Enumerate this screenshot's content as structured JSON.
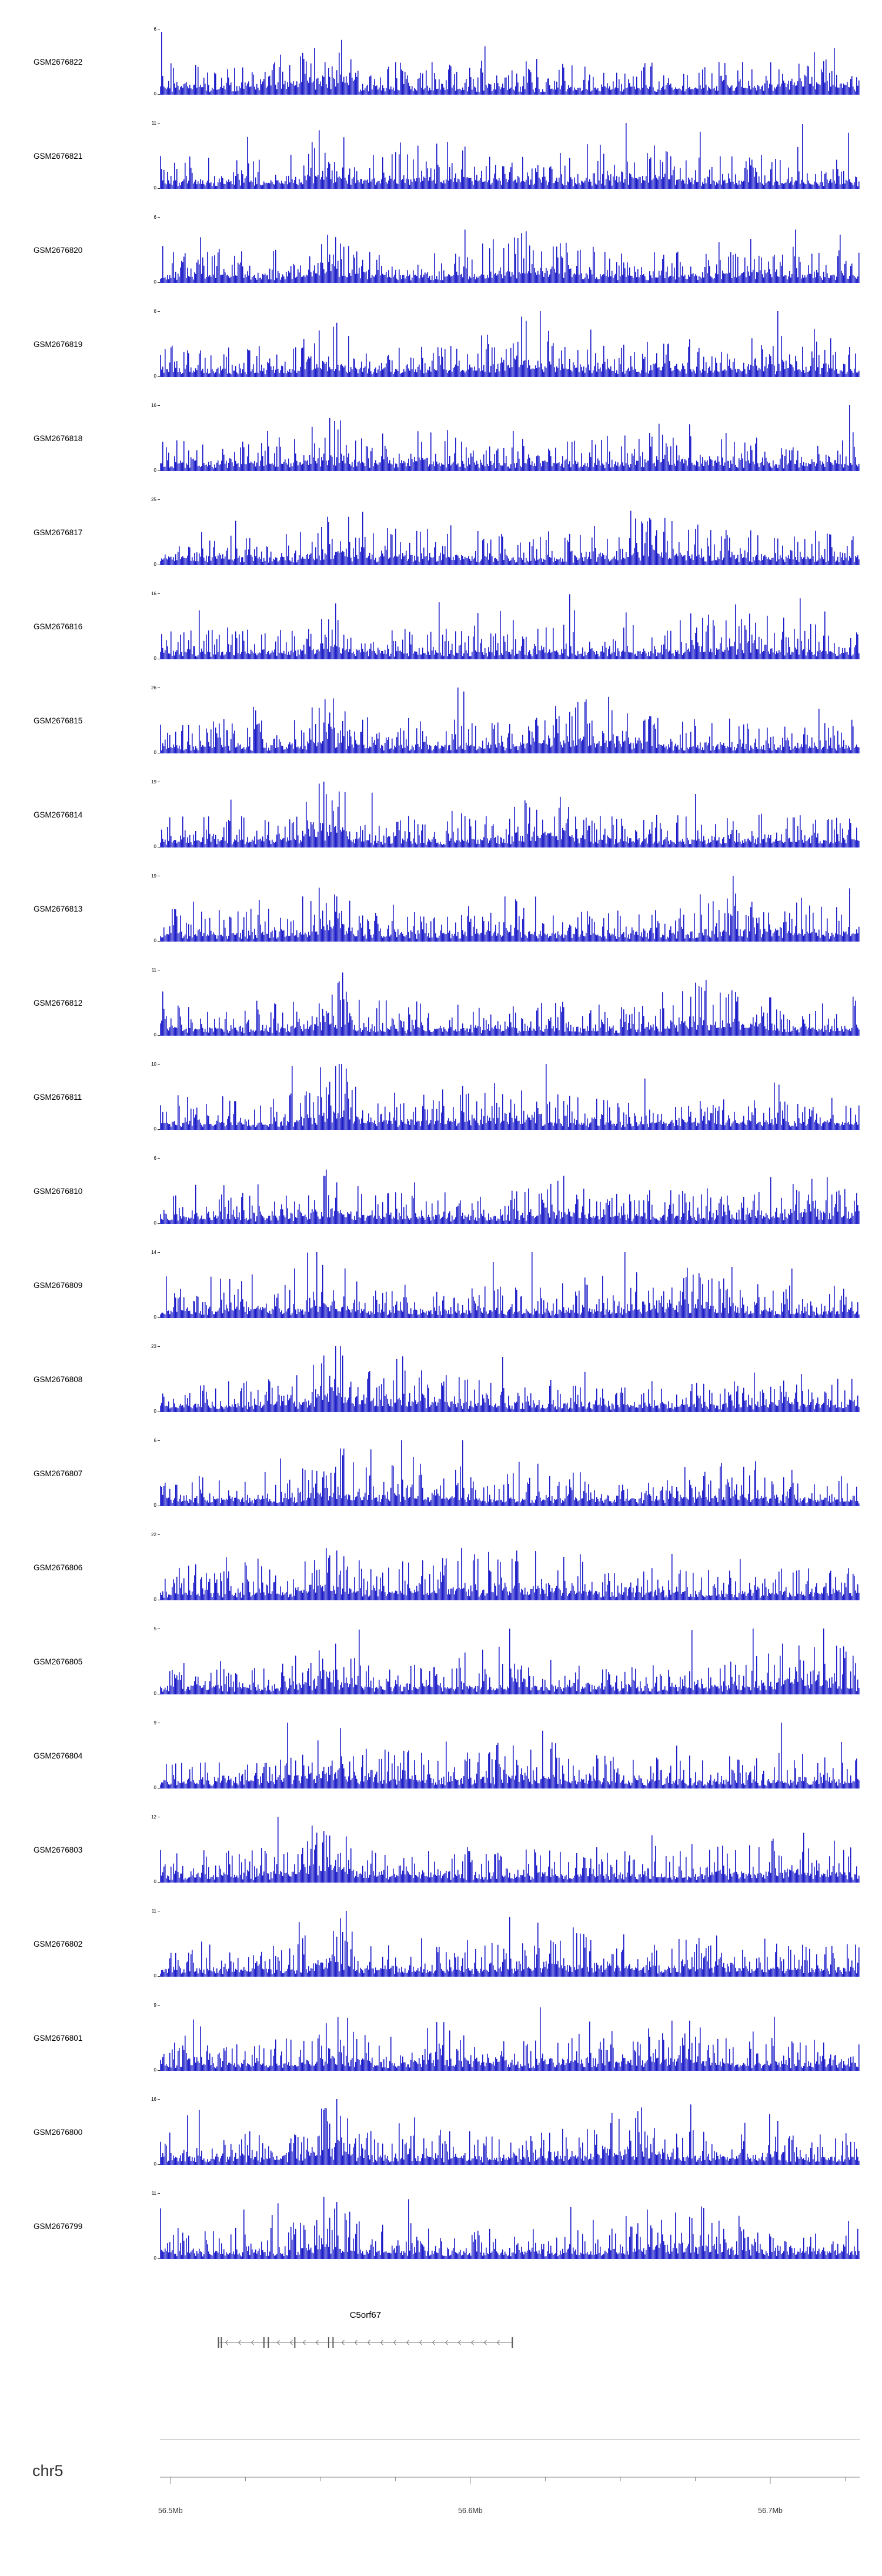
{
  "figure": {
    "chromosome_label": "chr5"
  },
  "chart_data": {
    "type": "area",
    "subtype": "genome-browser-coverage-tracks",
    "title": "",
    "chromosome": "chr5",
    "x_start_mb": 56.4965,
    "x_end_mb": 56.7298,
    "xlabel_units": "Mb",
    "grid": false,
    "legend": "none",
    "track_color": "#1a1ac8",
    "axis_color": "#888888",
    "text_color": "#333333",
    "common_peak_mb": 56.553,
    "x_ticks": [
      {
        "label": "56.5Mb",
        "mb": 56.5
      },
      {
        "label": "56.6Mb",
        "mb": 56.6
      },
      {
        "label": "56.7Mb",
        "mb": 56.7
      }
    ],
    "minor_tick_interval_mb": 0.025,
    "tracks": [
      {
        "label": "GSM2676822",
        "ymin": 0,
        "ymax": 6
      },
      {
        "label": "GSM2676821",
        "ymin": 0,
        "ymax": 11
      },
      {
        "label": "GSM2676820",
        "ymin": 0,
        "ymax": 6
      },
      {
        "label": "GSM2676819",
        "ymin": 0,
        "ymax": 6
      },
      {
        "label": "GSM2676818",
        "ymin": 0,
        "ymax": 16
      },
      {
        "label": "GSM2676817",
        "ymin": 0,
        "ymax": 25
      },
      {
        "label": "GSM2676816",
        "ymin": 0,
        "ymax": 16
      },
      {
        "label": "GSM2676815",
        "ymin": 0,
        "ymax": 26
      },
      {
        "label": "GSM2676814",
        "ymin": 0,
        "ymax": 19
      },
      {
        "label": "GSM2676813",
        "ymin": 0,
        "ymax": 19
      },
      {
        "label": "GSM2676812",
        "ymin": 0,
        "ymax": 11
      },
      {
        "label": "GSM2676811",
        "ymin": 0,
        "ymax": 10
      },
      {
        "label": "GSM2676810",
        "ymin": 0,
        "ymax": 6
      },
      {
        "label": "GSM2676809",
        "ymin": 0,
        "ymax": 14
      },
      {
        "label": "GSM2676808",
        "ymin": 0,
        "ymax": 23
      },
      {
        "label": "GSM2676807",
        "ymin": 0,
        "ymax": 6
      },
      {
        "label": "GSM2676806",
        "ymin": 0,
        "ymax": 22
      },
      {
        "label": "GSM2676805",
        "ymin": 0,
        "ymax": 5
      },
      {
        "label": "GSM2676804",
        "ymin": 0,
        "ymax": 9
      },
      {
        "label": "GSM2676803",
        "ymin": 0,
        "ymax": 12
      },
      {
        "label": "GSM2676802",
        "ymin": 0,
        "ymax": 11
      },
      {
        "label": "GSM2676801",
        "ymin": 0,
        "ymax": 9
      },
      {
        "label": "GSM2676800",
        "ymin": 0,
        "ymax": 16
      },
      {
        "label": "GSM2676799",
        "ymin": 0,
        "ymax": 11
      }
    ],
    "gene": {
      "name": "C5orf67",
      "strand": "-",
      "start_mb": 56.516,
      "end_mb": 56.614,
      "exon_fracs": [
        0,
        0.01,
        0.155,
        0.17,
        0.26,
        0.375,
        0.39,
        1.0
      ]
    }
  }
}
